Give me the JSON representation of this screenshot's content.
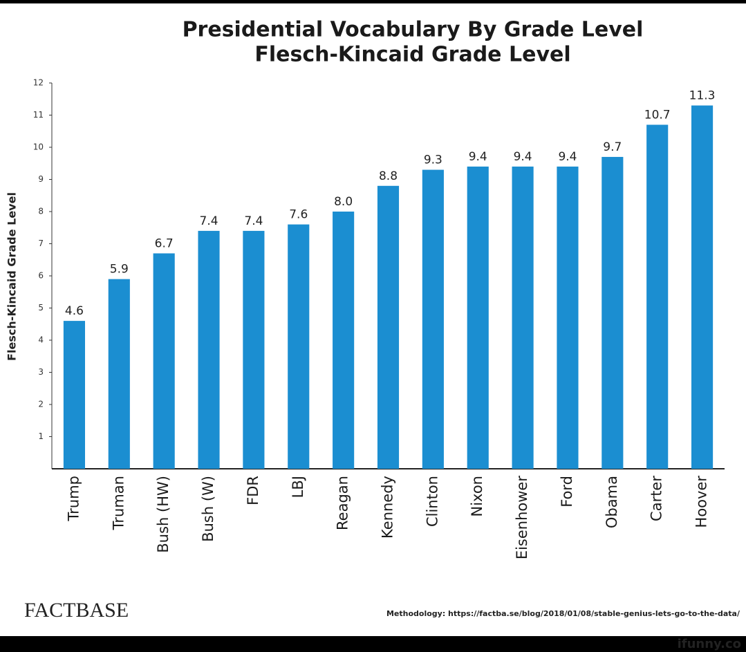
{
  "chart_data": {
    "type": "bar",
    "title": "Presidential Vocabulary By Grade Level",
    "subtitle": "Flesch-Kincaid Grade Level",
    "y_label": "Flesch-Kincaid Grade Level",
    "categories": [
      "Trump",
      "Truman",
      "Bush (HW)",
      "Bush (W)",
      "FDR",
      "LBJ",
      "Reagan",
      "Kennedy",
      "Clinton",
      "Nixon",
      "Eisenhower",
      "Ford",
      "Obama",
      "Carter",
      "Hoover"
    ],
    "values": [
      4.6,
      5.9,
      6.7,
      7.4,
      7.4,
      7.6,
      8.0,
      8.8,
      9.3,
      9.4,
      9.4,
      9.4,
      9.7,
      10.7,
      11.3
    ],
    "value_labels": [
      "4.6",
      "5.9",
      "6.7",
      "7.4",
      "7.4",
      "7.6",
      "8.0",
      "8.8",
      "9.3",
      "9.4",
      "9.4",
      "9.4",
      "9.7",
      "10.7",
      "11.3"
    ],
    "color": "#1b8ed1",
    "ylim": [
      0,
      12
    ],
    "yticks": [
      1,
      2,
      3,
      4,
      5,
      6,
      7,
      8,
      9,
      10,
      11,
      12
    ],
    "grid": false,
    "source": "FACTBASE",
    "note": "Methodology: https://factba.se/blog/2018/01/08/stable-genius-lets-go-to-the-data/"
  },
  "watermark": "ifunny.co"
}
